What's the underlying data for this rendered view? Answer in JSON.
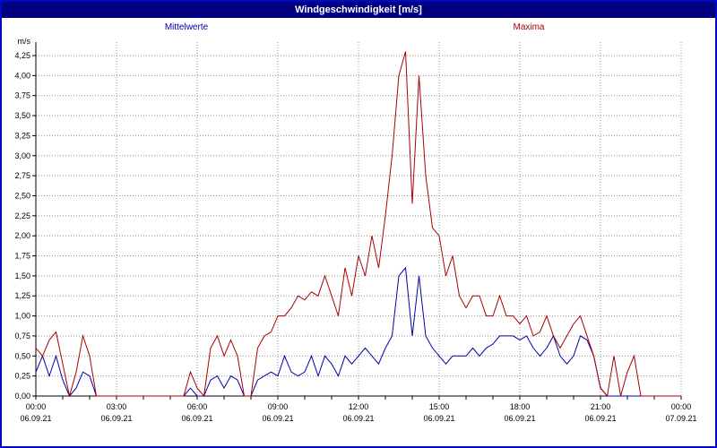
{
  "title": "Windgeschwindigkeit [m/s]",
  "colors": {
    "titlebar_bg": "#000080",
    "titlebar_text": "#ffffff",
    "window_border": "#0008c0",
    "grid": "#909090",
    "mean_series": "#0000aa",
    "max_series": "#aa0000"
  },
  "chart_data": {
    "type": "line",
    "title": "Windgeschwindigkeit [m/s]",
    "ylabel": "m/s",
    "xlabel": "",
    "ylim": [
      0,
      4.5
    ],
    "grid": "dotted",
    "legend_position": "top",
    "x_total_hours": 24,
    "sample_interval_minutes": 15,
    "y_ticks": [
      "0,00",
      "0,25",
      "0,50",
      "0,75",
      "1,00",
      "1,25",
      "1,50",
      "1,75",
      "2,00",
      "2,25",
      "2,50",
      "2,75",
      "3,00",
      "3,25",
      "3,50",
      "3,75",
      "4,00",
      "4,25"
    ],
    "y_tick_step": 0.25,
    "x_ticks": [
      {
        "time": "00:00",
        "date": "06.09.21"
      },
      {
        "time": "03:00",
        "date": "06.09.21"
      },
      {
        "time": "06:00",
        "date": "06.09.21"
      },
      {
        "time": "09:00",
        "date": "06.09.21"
      },
      {
        "time": "12:00",
        "date": "06.09.21"
      },
      {
        "time": "15:00",
        "date": "06.09.21"
      },
      {
        "time": "18:00",
        "date": "06.09.21"
      },
      {
        "time": "21:00",
        "date": "06.09.21"
      },
      {
        "time": "00:00",
        "date": "07.09.21"
      }
    ],
    "series": [
      {
        "name": "Mittelwerte",
        "color": "#0000aa",
        "values": [
          0.3,
          0.5,
          0.25,
          0.5,
          0.2,
          0.0,
          0.1,
          0.3,
          0.25,
          0.0,
          0.0,
          0.0,
          0.0,
          0.0,
          0.0,
          0.0,
          0.0,
          0.0,
          0.0,
          0.0,
          0.0,
          0.0,
          0.0,
          0.1,
          0.0,
          0.0,
          0.2,
          0.25,
          0.1,
          0.25,
          0.2,
          0.0,
          0.0,
          0.2,
          0.25,
          0.3,
          0.25,
          0.5,
          0.3,
          0.25,
          0.3,
          0.5,
          0.25,
          0.5,
          0.4,
          0.25,
          0.5,
          0.4,
          0.5,
          0.6,
          0.5,
          0.4,
          0.6,
          0.75,
          1.5,
          1.6,
          0.75,
          1.5,
          0.75,
          0.6,
          0.5,
          0.4,
          0.5,
          0.5,
          0.5,
          0.6,
          0.5,
          0.6,
          0.65,
          0.75,
          0.75,
          0.75,
          0.7,
          0.75,
          0.6,
          0.5,
          0.6,
          0.75,
          0.5,
          0.4,
          0.5,
          0.75,
          0.7,
          0.5,
          0.1,
          0.0,
          0.0,
          0.0,
          0.0,
          0.0,
          0.0,
          0.0,
          0.0,
          0.0,
          0.0,
          0.0,
          0.0
        ]
      },
      {
        "name": "Maxima",
        "color": "#aa0000",
        "values": [
          0.6,
          0.5,
          0.7,
          0.8,
          0.4,
          0.0,
          0.3,
          0.75,
          0.5,
          0.0,
          0.0,
          0.0,
          0.0,
          0.0,
          0.0,
          0.0,
          0.0,
          0.0,
          0.0,
          0.0,
          0.0,
          0.0,
          0.0,
          0.3,
          0.1,
          0.0,
          0.6,
          0.75,
          0.5,
          0.7,
          0.5,
          0.0,
          0.0,
          0.6,
          0.75,
          0.8,
          1.0,
          1.0,
          1.1,
          1.25,
          1.2,
          1.3,
          1.25,
          1.5,
          1.25,
          1.0,
          1.6,
          1.25,
          1.75,
          1.5,
          2.0,
          1.6,
          2.25,
          3.0,
          4.0,
          4.3,
          2.4,
          4.0,
          2.75,
          2.1,
          2.0,
          1.5,
          1.75,
          1.25,
          1.1,
          1.25,
          1.25,
          1.0,
          1.0,
          1.25,
          1.0,
          1.0,
          0.9,
          1.0,
          0.75,
          0.8,
          1.0,
          0.75,
          0.6,
          0.75,
          0.9,
          1.0,
          0.75,
          0.5,
          0.1,
          0.0,
          0.5,
          0.0,
          0.3,
          0.5,
          0.0,
          0.0,
          0.0,
          0.0,
          0.0,
          0.0,
          0.0
        ]
      }
    ]
  }
}
